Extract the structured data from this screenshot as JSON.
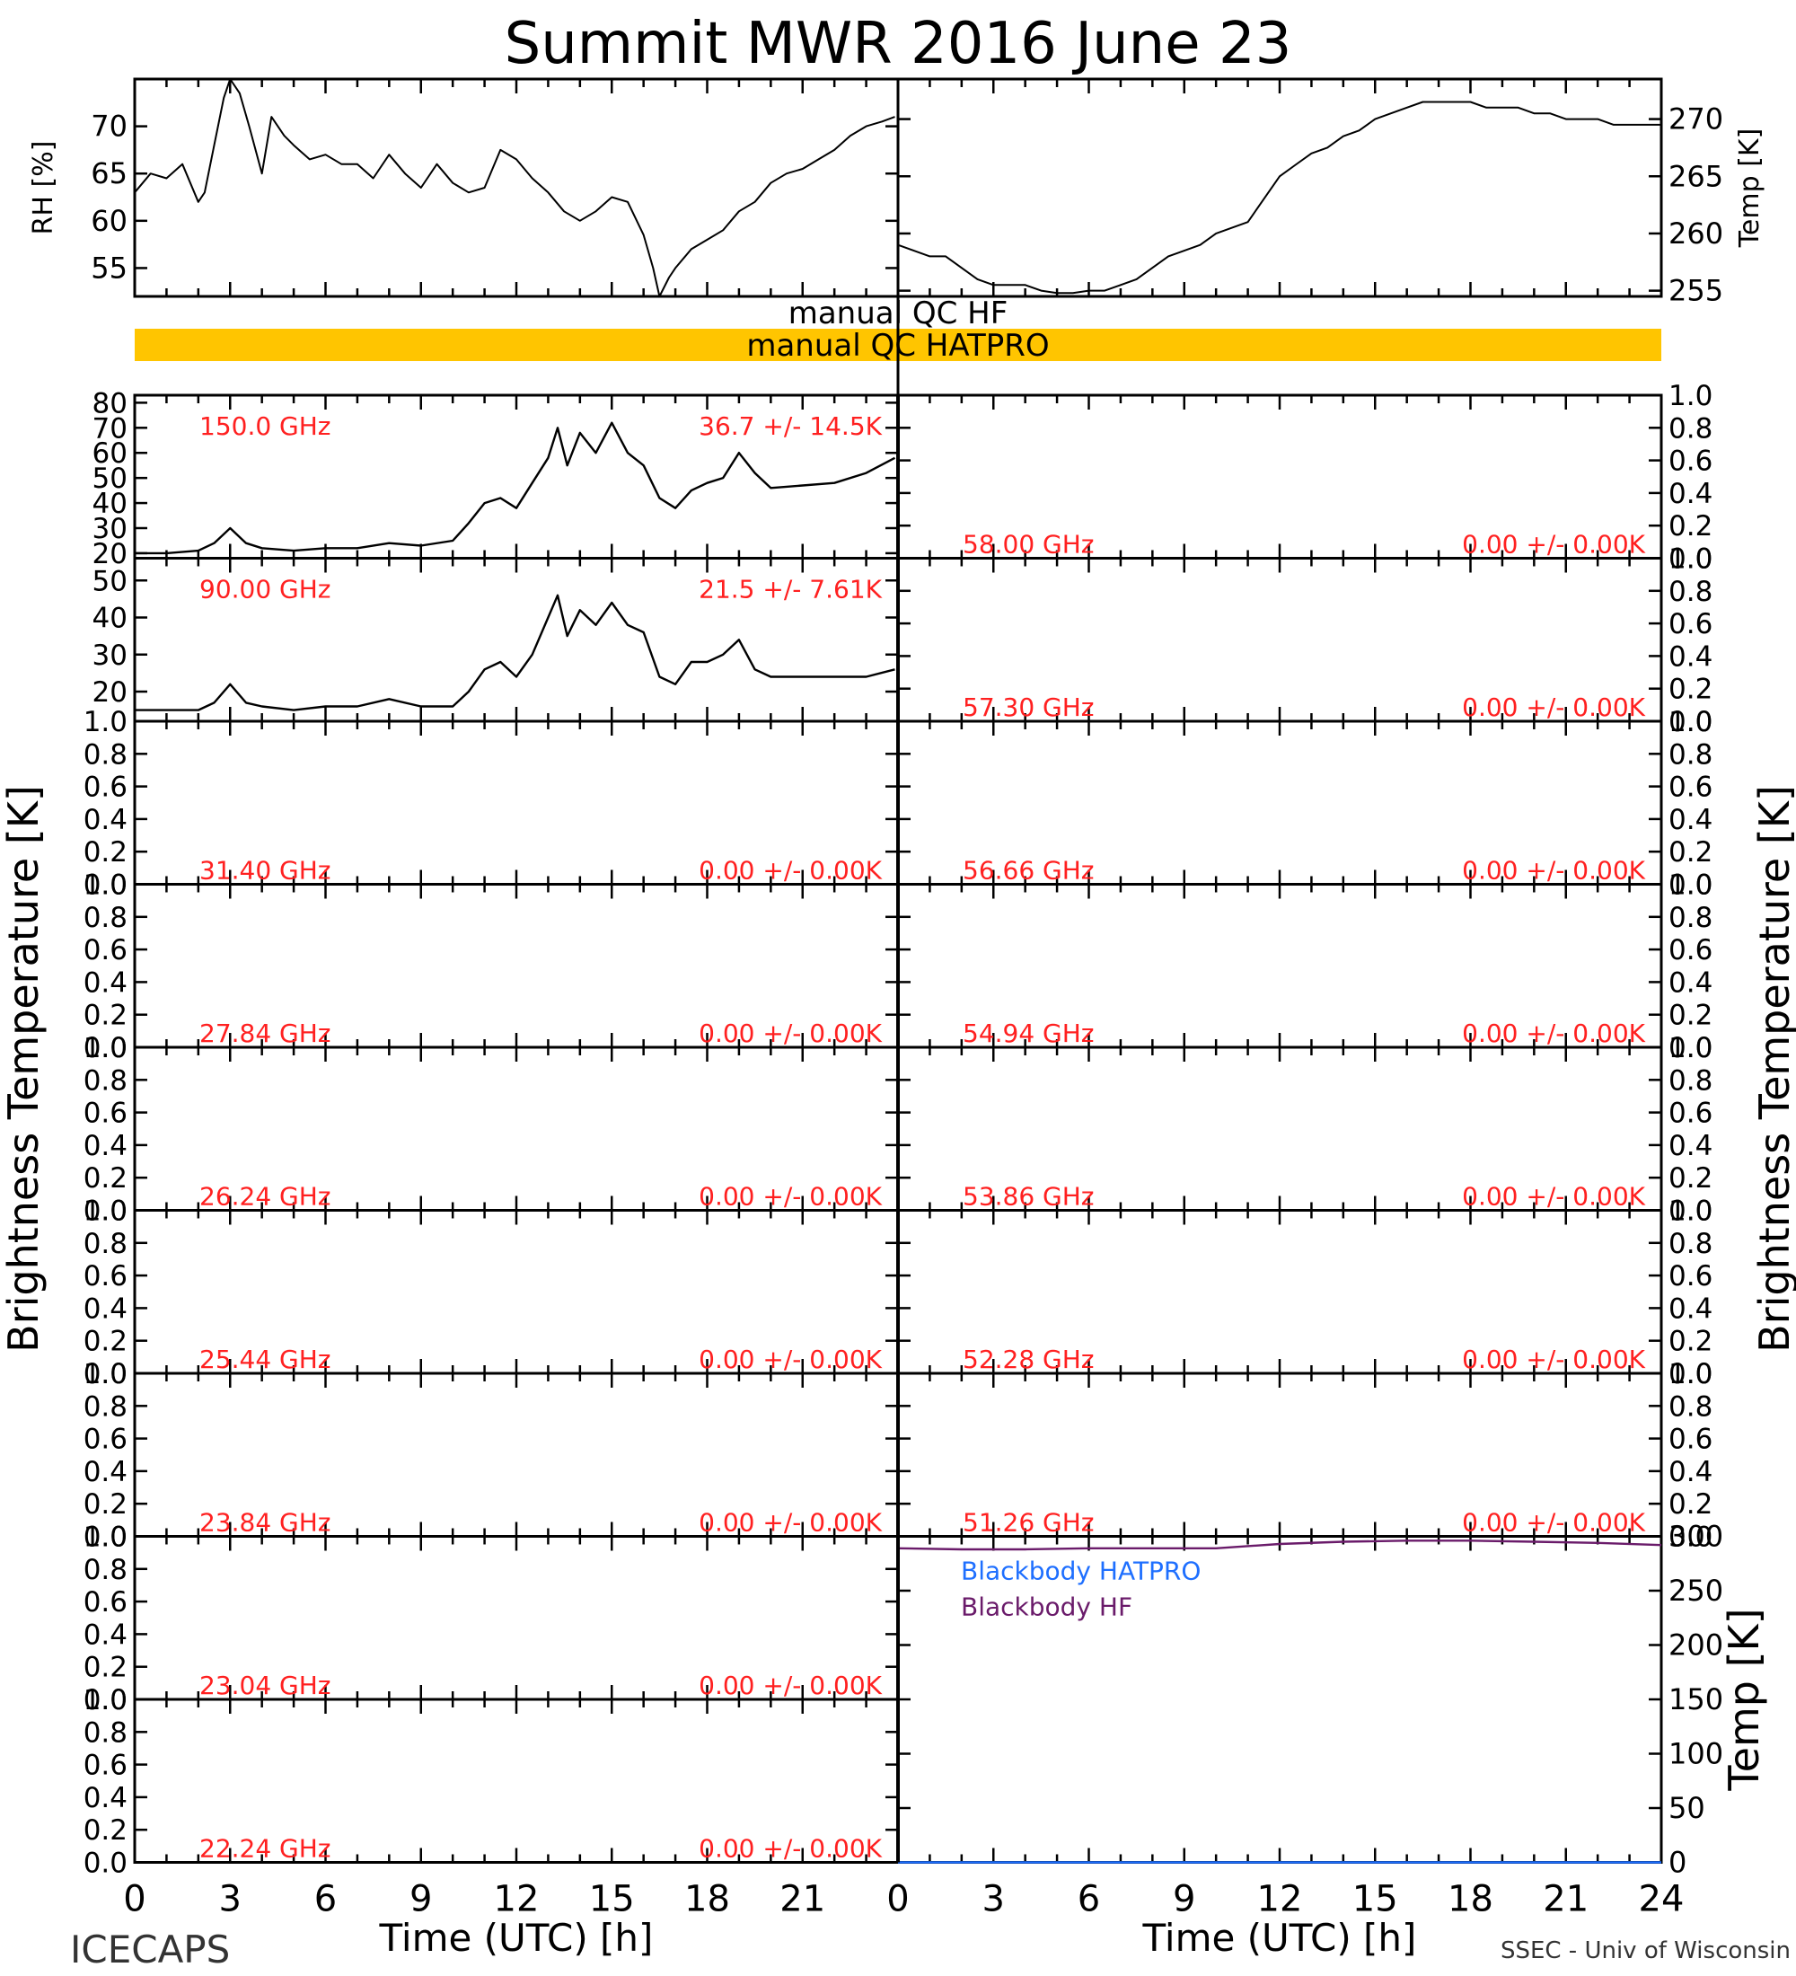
{
  "title": "Summit MWR 2016 June 23",
  "footer": {
    "left": "ICECAPS",
    "right": "SSEC - Univ of Wisconsin"
  },
  "x_axis": {
    "label": "Time (UTC) [h]",
    "ticks_left": [
      "0",
      "3",
      "6",
      "9",
      "12",
      "15",
      "18",
      "21"
    ],
    "ticks_right": [
      "0",
      "3",
      "6",
      "9",
      "12",
      "15",
      "18",
      "21",
      "24"
    ],
    "range": [
      0,
      24
    ]
  },
  "left_ylabel": "Brightness Temperature [K]",
  "right_ylabel": "Brightness Temperature [K]",
  "qc": {
    "hf_label": "manual QC HF",
    "hatpro_label": "manual QC HATPRO",
    "hatpro_bar_color": "#FFC500",
    "hf_bar_color": "#ffffff"
  },
  "colors": {
    "trace": "#000000",
    "annotation": "#FF2020",
    "hatpro_bb": "#1E6FFF",
    "hf_bb": "#6A1B6A"
  },
  "chart_data": [
    {
      "type": "line",
      "panel": "rh",
      "ylabel": "RH [%]",
      "ylim": [
        52,
        75
      ],
      "yticks": [
        "55",
        "60",
        "65",
        "70"
      ],
      "x": [
        0,
        0.5,
        1,
        1.5,
        2,
        2.2,
        2.5,
        2.8,
        3,
        3.3,
        3.6,
        4,
        4.3,
        4.7,
        5,
        5.5,
        6,
        6.5,
        7,
        7.5,
        8,
        8.5,
        9,
        9.5,
        10,
        10.5,
        11,
        11.5,
        12,
        12.5,
        13,
        13.5,
        14,
        14.5,
        15,
        15.5,
        16,
        16.3,
        16.5,
        16.8,
        17,
        17.5,
        18,
        18.5,
        19,
        19.5,
        20,
        20.5,
        21,
        21.5,
        22,
        22.5,
        23,
        23.5,
        23.9
      ],
      "values": [
        63,
        65,
        64.5,
        66,
        62,
        63,
        68,
        73,
        75,
        73.5,
        70,
        65,
        71,
        69,
        68,
        66.5,
        67,
        66,
        66,
        64.5,
        67,
        65,
        63.5,
        66,
        64,
        63,
        63.5,
        67.5,
        66.5,
        64.5,
        63,
        61,
        60,
        61,
        62.5,
        62,
        58.5,
        55,
        51,
        54,
        55,
        57,
        58,
        59,
        61,
        62,
        64,
        65,
        65.5,
        66.5,
        67.5,
        69,
        70,
        70.5,
        71
      ]
    },
    {
      "type": "line",
      "panel": "temp",
      "ylabel": "Temp [K]",
      "ylim": [
        254.5,
        273.5
      ],
      "yticks": [
        "255",
        "260",
        "265",
        "270"
      ],
      "x": [
        0,
        0.5,
        1,
        1.5,
        2,
        2.5,
        3,
        3.5,
        4,
        4.5,
        5,
        5.5,
        6,
        6.5,
        7,
        7.5,
        8,
        8.5,
        9,
        9.5,
        10,
        10.5,
        11,
        11.5,
        12,
        12.5,
        13,
        13.5,
        14,
        14.5,
        15,
        15.5,
        16,
        16.5,
        17,
        17.5,
        18,
        18.5,
        19,
        19.5,
        20,
        20.5,
        21,
        21.5,
        22,
        22.5,
        23,
        23.5,
        24
      ],
      "values": [
        259,
        258.5,
        258,
        258,
        257,
        256,
        255.5,
        255.5,
        255.5,
        255,
        254.8,
        254.8,
        255,
        255,
        255.5,
        256,
        257,
        258,
        258.5,
        259,
        260,
        260.5,
        261,
        263,
        265,
        266,
        267,
        267.5,
        268.5,
        269,
        270,
        270.5,
        271,
        271.5,
        271.5,
        271.5,
        271.5,
        271,
        271,
        271,
        270.5,
        270.5,
        270,
        270,
        270,
        269.5,
        269.5,
        269.5,
        269.5
      ]
    },
    {
      "type": "line",
      "panel": "tb_left_0",
      "label": "150.0 GHz",
      "stats": "36.7 +/- 14.5K",
      "ylim": [
        18,
        83
      ],
      "yticks": [
        "20",
        "30",
        "40",
        "50",
        "60",
        "70",
        "80"
      ],
      "x": [
        0,
        1,
        2,
        2.5,
        3,
        3.5,
        4,
        5,
        6,
        7,
        8,
        9,
        10,
        10.5,
        11,
        11.5,
        12,
        12.5,
        13,
        13.3,
        13.6,
        14,
        14.5,
        15,
        15.5,
        16,
        16.5,
        17,
        17.5,
        18,
        18.5,
        19,
        19.5,
        20,
        21,
        22,
        23,
        23.9
      ],
      "values": [
        20,
        20,
        21,
        24,
        30,
        24,
        22,
        21,
        22,
        22,
        24,
        23,
        25,
        32,
        40,
        42,
        38,
        48,
        58,
        70,
        55,
        68,
        60,
        72,
        60,
        55,
        42,
        38,
        45,
        48,
        50,
        60,
        52,
        46,
        47,
        48,
        52,
        58
      ]
    },
    {
      "type": "line",
      "panel": "tb_left_1",
      "label": "90.00 GHz",
      "stats": "21.5 +/- 7.61K",
      "ylim": [
        12,
        56
      ],
      "yticks": [
        "20",
        "30",
        "40",
        "50"
      ],
      "x": [
        0,
        1,
        2,
        2.5,
        3,
        3.5,
        4,
        5,
        6,
        7,
        8,
        9,
        10,
        10.5,
        11,
        11.5,
        12,
        12.5,
        13,
        13.3,
        13.6,
        14,
        14.5,
        15,
        15.5,
        16,
        16.5,
        17,
        17.5,
        18,
        18.5,
        19,
        19.5,
        20,
        21,
        22,
        23,
        23.9
      ],
      "values": [
        15,
        15,
        15,
        17,
        22,
        17,
        16,
        15,
        16,
        16,
        18,
        16,
        16,
        20,
        26,
        28,
        24,
        30,
        40,
        46,
        35,
        42,
        38,
        44,
        38,
        36,
        24,
        22,
        28,
        28,
        30,
        34,
        26,
        24,
        24,
        24,
        24,
        26
      ]
    },
    {
      "type": "line",
      "panel": "tb_left_2",
      "label": "31.40 GHz",
      "stats": "0.00 +/- 0.00K",
      "ylim": [
        0,
        1
      ],
      "yticks": [
        "0.0",
        "0.2",
        "0.4",
        "0.6",
        "0.8",
        "1.0"
      ]
    },
    {
      "type": "line",
      "panel": "tb_left_3",
      "label": "27.84 GHz",
      "stats": "0.00 +/- 0.00K",
      "ylim": [
        0,
        1
      ],
      "yticks": [
        "0.0",
        "0.2",
        "0.4",
        "0.6",
        "0.8",
        "1.0"
      ]
    },
    {
      "type": "line",
      "panel": "tb_left_4",
      "label": "26.24 GHz",
      "stats": "0.00 +/- 0.00K",
      "ylim": [
        0,
        1
      ],
      "yticks": [
        "0.0",
        "0.2",
        "0.4",
        "0.6",
        "0.8",
        "1.0"
      ]
    },
    {
      "type": "line",
      "panel": "tb_left_5",
      "label": "25.44 GHz",
      "stats": "0.00 +/- 0.00K",
      "ylim": [
        0,
        1
      ],
      "yticks": [
        "0.0",
        "0.2",
        "0.4",
        "0.6",
        "0.8",
        "1.0"
      ]
    },
    {
      "type": "line",
      "panel": "tb_left_6",
      "label": "23.84 GHz",
      "stats": "0.00 +/- 0.00K",
      "ylim": [
        0,
        1
      ],
      "yticks": [
        "0.0",
        "0.2",
        "0.4",
        "0.6",
        "0.8",
        "1.0"
      ]
    },
    {
      "type": "line",
      "panel": "tb_left_7",
      "label": "23.04 GHz",
      "stats": "0.00 +/- 0.00K",
      "ylim": [
        0,
        1
      ],
      "yticks": [
        "0.0",
        "0.2",
        "0.4",
        "0.6",
        "0.8",
        "1.0"
      ]
    },
    {
      "type": "line",
      "panel": "tb_left_8",
      "label": "22.24 GHz",
      "stats": "0.00 +/- 0.00K",
      "ylim": [
        0,
        1
      ],
      "yticks": [
        "0.0",
        "0.2",
        "0.4",
        "0.6",
        "0.8",
        "1.0"
      ]
    },
    {
      "type": "line",
      "panel": "tb_right_0",
      "label": "58.00 GHz",
      "stats": "0.00 +/- 0.00K",
      "ylim": [
        0,
        1
      ],
      "yticks": [
        "0.0",
        "0.2",
        "0.4",
        "0.6",
        "0.8",
        "1.0"
      ]
    },
    {
      "type": "line",
      "panel": "tb_right_1",
      "label": "57.30 GHz",
      "stats": "0.00 +/- 0.00K",
      "ylim": [
        0,
        1
      ],
      "yticks": [
        "0.0",
        "0.2",
        "0.4",
        "0.6",
        "0.8",
        "1.0"
      ]
    },
    {
      "type": "line",
      "panel": "tb_right_2",
      "label": "56.66 GHz",
      "stats": "0.00 +/- 0.00K",
      "ylim": [
        0,
        1
      ],
      "yticks": [
        "0.0",
        "0.2",
        "0.4",
        "0.6",
        "0.8",
        "1.0"
      ]
    },
    {
      "type": "line",
      "panel": "tb_right_3",
      "label": "54.94 GHz",
      "stats": "0.00 +/- 0.00K",
      "ylim": [
        0,
        1
      ],
      "yticks": [
        "0.0",
        "0.2",
        "0.4",
        "0.6",
        "0.8",
        "1.0"
      ]
    },
    {
      "type": "line",
      "panel": "tb_right_4",
      "label": "53.86 GHz",
      "stats": "0.00 +/- 0.00K",
      "ylim": [
        0,
        1
      ],
      "yticks": [
        "0.0",
        "0.2",
        "0.4",
        "0.6",
        "0.8",
        "1.0"
      ]
    },
    {
      "type": "line",
      "panel": "tb_right_5",
      "label": "52.28 GHz",
      "stats": "0.00 +/- 0.00K",
      "ylim": [
        0,
        1
      ],
      "yticks": [
        "0.0",
        "0.2",
        "0.4",
        "0.6",
        "0.8",
        "1.0"
      ]
    },
    {
      "type": "line",
      "panel": "tb_right_6",
      "label": "51.26 GHz",
      "stats": "0.00 +/- 0.00K",
      "ylim": [
        0,
        1
      ],
      "yticks": [
        "0.0",
        "0.2",
        "0.4",
        "0.6",
        "0.8",
        "1.0"
      ]
    },
    {
      "type": "line",
      "panel": "blackbody",
      "ylabel": "Temp [K]",
      "ylim": [
        0,
        300
      ],
      "yticks": [
        "0",
        "50",
        "100",
        "150",
        "200",
        "250",
        "300"
      ],
      "series": [
        {
          "name": "Blackbody HATPRO",
          "color": "#1E6FFF",
          "x": [
            0,
            24
          ],
          "values": [
            0,
            0
          ]
        },
        {
          "name": "Blackbody HF",
          "color": "#6A1B6A",
          "x": [
            0,
            2,
            4,
            6,
            8,
            10,
            12,
            14,
            16,
            18,
            20,
            22,
            24
          ],
          "values": [
            289,
            288,
            288,
            289,
            289,
            289,
            293,
            295,
            296,
            296,
            295,
            294,
            292
          ]
        }
      ]
    }
  ]
}
